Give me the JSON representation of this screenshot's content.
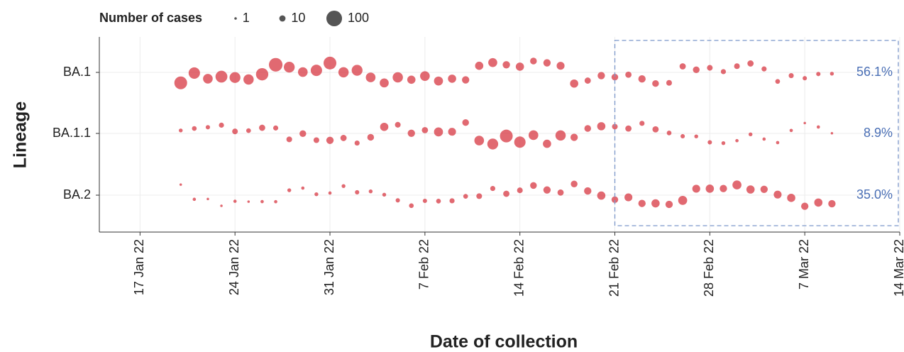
{
  "chart_data": {
    "type": "bubble",
    "size_legend": {
      "title": "Number of cases",
      "values": [
        1,
        10,
        100
      ]
    },
    "x_label": "Date of collection",
    "y_label": "Lineage",
    "xlim": [
      "2022-01-14",
      "2022-03-14"
    ],
    "xticks": [
      {
        "value": "2022-01-17",
        "label": "17 Jan 22"
      },
      {
        "value": "2022-01-24",
        "label": "24 Jan 22"
      },
      {
        "value": "2022-01-31",
        "label": "31 Jan 22"
      },
      {
        "value": "2022-02-07",
        "label": "7 Feb 22"
      },
      {
        "value": "2022-02-14",
        "label": "14 Feb 22"
      },
      {
        "value": "2022-02-21",
        "label": "21 Feb 22"
      },
      {
        "value": "2022-02-28",
        "label": "28 Feb 22"
      },
      {
        "value": "2022-03-07",
        "label": "7 Mar 22"
      },
      {
        "value": "2022-03-14",
        "label": "14 Mar 22"
      }
    ],
    "grid": true,
    "highlight": {
      "xlim": [
        "2022-02-21",
        "2022-03-14"
      ]
    },
    "annotations": [
      "56.1%",
      "8.9%",
      "35.0%"
    ],
    "x": [
      "2022-01-20",
      "2022-01-21",
      "2022-01-22",
      "2022-01-23",
      "2022-01-24",
      "2022-01-25",
      "2022-01-26",
      "2022-01-27",
      "2022-01-28",
      "2022-01-29",
      "2022-01-30",
      "2022-01-31",
      "2022-02-01",
      "2022-02-02",
      "2022-02-03",
      "2022-02-04",
      "2022-02-05",
      "2022-02-06",
      "2022-02-07",
      "2022-02-08",
      "2022-02-09",
      "2022-02-10",
      "2022-02-11",
      "2022-02-12",
      "2022-02-13",
      "2022-02-14",
      "2022-02-15",
      "2022-02-16",
      "2022-02-17",
      "2022-02-18",
      "2022-02-19",
      "2022-02-20",
      "2022-02-21",
      "2022-02-22",
      "2022-02-23",
      "2022-02-24",
      "2022-02-25",
      "2022-02-26",
      "2022-02-27",
      "2022-02-28",
      "2022-03-01",
      "2022-03-02",
      "2022-03-03",
      "2022-03-04",
      "2022-03-05",
      "2022-03-06",
      "2022-03-07",
      "2022-03-08",
      "2022-03-09"
    ],
    "series": [
      {
        "name": "BA.1",
        "color": "#d9434e",
        "values": [
          60,
          45,
          30,
          50,
          40,
          35,
          55,
          70,
          40,
          30,
          45,
          60,
          35,
          40,
          30,
          25,
          35,
          20,
          30,
          25,
          20,
          15,
          20,
          25,
          15,
          20,
          12,
          15,
          18,
          20,
          10,
          15,
          12,
          10,
          15,
          12,
          8,
          10,
          12,
          8,
          6,
          8,
          10,
          6,
          5,
          6,
          4,
          4,
          3
        ]
      },
      {
        "name": "BA.1.1",
        "color": "#d9434e",
        "values": [
          3,
          5,
          4,
          6,
          8,
          5,
          10,
          6,
          8,
          12,
          8,
          15,
          10,
          6,
          12,
          20,
          8,
          15,
          10,
          25,
          18,
          12,
          30,
          40,
          60,
          45,
          30,
          20,
          35,
          15,
          12,
          20,
          8,
          10,
          6,
          10,
          5,
          4,
          3,
          4,
          3,
          2,
          3,
          2,
          2,
          2,
          1,
          2,
          1
        ]
      },
      {
        "name": "BA.2",
        "color": "#d9434e",
        "values": [
          1,
          2,
          1,
          1,
          2,
          1,
          2,
          2,
          3,
          2,
          3,
          2,
          3,
          4,
          3,
          3,
          4,
          5,
          4,
          5,
          6,
          5,
          8,
          6,
          10,
          8,
          12,
          15,
          10,
          12,
          15,
          20,
          12,
          18,
          15,
          20,
          15,
          25,
          18,
          20,
          15,
          25,
          20,
          15,
          18,
          20,
          15,
          20,
          15
        ]
      }
    ]
  }
}
